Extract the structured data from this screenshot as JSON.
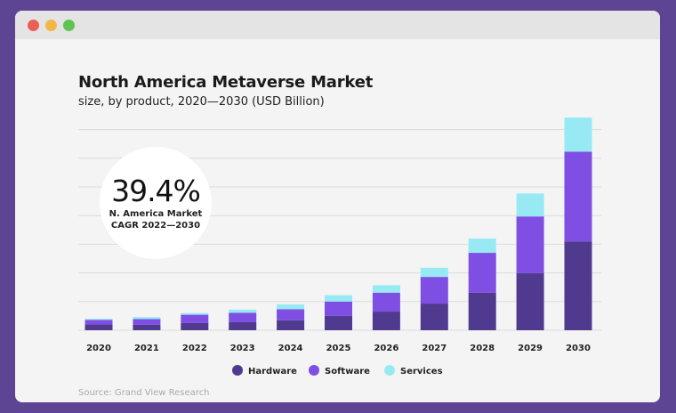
{
  "window": {
    "controls": [
      "close",
      "minimize",
      "maximize"
    ],
    "control_colors": [
      "#ec5f57",
      "#f3b749",
      "#5fc454"
    ]
  },
  "colors": {
    "background": "#5e4594",
    "hardware": "#503a8f",
    "software": "#7f4fe3",
    "services": "#97e9f4"
  },
  "callout": {
    "value": "39.4%",
    "label_line1": "N. America Market",
    "label_line2": "CAGR 2022—2030"
  },
  "source": "Source: Grand View Research",
  "chart_data": {
    "type": "bar",
    "stacked": true,
    "title": "North America Metaverse Market",
    "subtitle": "size, by product, 2020—2030 (USD Billion)",
    "xlabel": "",
    "ylabel": "",
    "ylim": [
      0,
      7.4
    ],
    "grid": true,
    "legend": "bottom",
    "categories": [
      "2020",
      "2021",
      "2022",
      "2023",
      "2024",
      "2025",
      "2026",
      "2027",
      "2028",
      "2029",
      "2030"
    ],
    "series": [
      {
        "name": "Hardware",
        "color": "#503a8f",
        "values": [
          0.2,
          0.19,
          0.25,
          0.28,
          0.35,
          0.5,
          0.65,
          0.93,
          1.31,
          1.99,
          3.1
        ]
      },
      {
        "name": "Software",
        "color": "#7f4fe3",
        "values": [
          0.16,
          0.2,
          0.29,
          0.33,
          0.38,
          0.5,
          0.66,
          0.93,
          1.39,
          1.98,
          3.13
        ]
      },
      {
        "name": "Services",
        "color": "#97e9f4",
        "values": [
          0.04,
          0.07,
          0.06,
          0.11,
          0.17,
          0.22,
          0.26,
          0.32,
          0.5,
          0.8,
          1.19
        ]
      }
    ]
  }
}
